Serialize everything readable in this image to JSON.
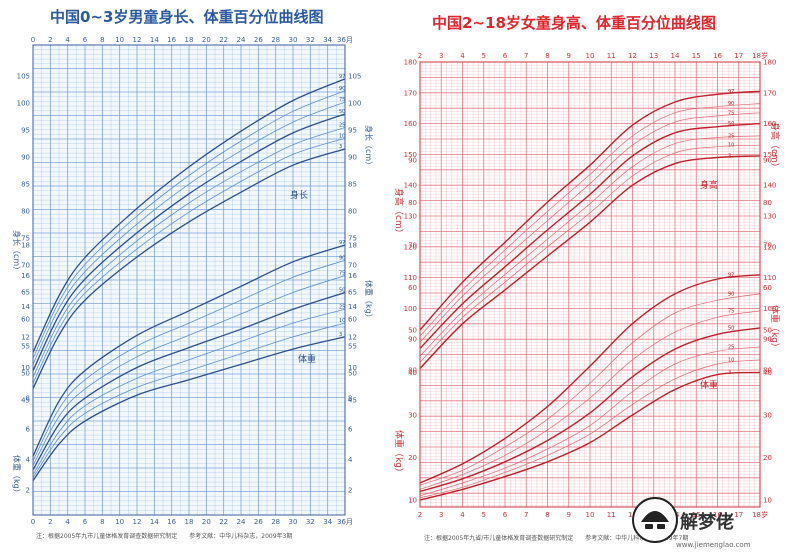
{
  "chart_data": [
    {
      "type": "line",
      "title": "中国0~3岁男童身长、体重百分位曲线图",
      "x_unit": "月",
      "x_ticks": [
        0,
        2,
        4,
        6,
        8,
        10,
        12,
        14,
        16,
        18,
        20,
        22,
        24,
        26,
        28,
        30,
        32,
        34,
        36
      ],
      "x_tick_labels": [
        "0",
        "2",
        "4",
        "6",
        "8",
        "10",
        "12",
        "14",
        "16",
        "18",
        "20",
        "22",
        "24",
        "26",
        "28",
        "30",
        "32",
        "34",
        "36月"
      ],
      "length_axis": {
        "label": "身长（cm）",
        "ylim": [
          45,
          108
        ],
        "ticks": [
          45,
          50,
          55,
          60,
          65,
          70,
          75,
          80,
          85,
          90,
          95,
          100,
          105
        ]
      },
      "weight_axis": {
        "label": "体重（kg）",
        "ylim": [
          2,
          18
        ],
        "ticks": [
          2,
          4,
          6,
          8,
          10,
          12,
          14,
          16,
          18
        ]
      },
      "length_label": "身长",
      "weight_label": "体重",
      "percentiles": [
        "3",
        "10",
        "25",
        "50",
        "75",
        "90",
        "97"
      ],
      "length_series": [
        {
          "name": "3",
          "x": [
            0,
            3,
            6,
            12,
            18,
            24,
            30,
            36
          ],
          "y": [
            47.1,
            57.0,
            63.5,
            71.5,
            78.0,
            83.5,
            88.5,
            91.5
          ]
        },
        {
          "name": "10",
          "x": [
            0,
            3,
            6,
            12,
            18,
            24,
            30,
            36
          ],
          "y": [
            48.1,
            58.2,
            64.8,
            73.0,
            79.8,
            85.5,
            90.5,
            93.5
          ]
        },
        {
          "name": "25",
          "x": [
            0,
            3,
            6,
            12,
            18,
            24,
            30,
            36
          ],
          "y": [
            49.2,
            59.4,
            66.0,
            74.5,
            81.5,
            87.3,
            92.3,
            95.5
          ]
        },
        {
          "name": "50",
          "x": [
            0,
            3,
            6,
            12,
            18,
            24,
            30,
            36
          ],
          "y": [
            50.4,
            60.7,
            67.4,
            76.0,
            83.2,
            89.2,
            94.5,
            98.0
          ]
        },
        {
          "name": "75",
          "x": [
            0,
            3,
            6,
            12,
            18,
            24,
            30,
            36
          ],
          "y": [
            51.6,
            62.0,
            68.8,
            77.6,
            85.0,
            91.2,
            96.5,
            100.2
          ]
        },
        {
          "name": "90",
          "x": [
            0,
            3,
            6,
            12,
            18,
            24,
            30,
            36
          ],
          "y": [
            52.7,
            63.2,
            70.1,
            79.1,
            86.6,
            93.0,
            98.5,
            102.3
          ]
        },
        {
          "name": "97",
          "x": [
            0,
            3,
            6,
            12,
            18,
            24,
            30,
            36
          ],
          "y": [
            53.8,
            64.3,
            71.4,
            80.5,
            88.2,
            94.8,
            100.5,
            104.5
          ]
        }
      ],
      "weight_series": [
        {
          "name": "3",
          "x": [
            0,
            3,
            6,
            12,
            18,
            24,
            30,
            36
          ],
          "y": [
            2.6,
            5.0,
            6.5,
            8.2,
            9.2,
            10.2,
            11.2,
            12.0
          ]
        },
        {
          "name": "10",
          "x": [
            0,
            3,
            6,
            12,
            18,
            24,
            30,
            36
          ],
          "y": [
            2.8,
            5.4,
            7.0,
            8.7,
            9.8,
            10.9,
            12.0,
            12.9
          ]
        },
        {
          "name": "25",
          "x": [
            0,
            3,
            6,
            12,
            18,
            24,
            30,
            36
          ],
          "y": [
            3.0,
            5.8,
            7.5,
            9.3,
            10.5,
            11.7,
            12.9,
            13.8
          ]
        },
        {
          "name": "50",
          "x": [
            0,
            3,
            6,
            12,
            18,
            24,
            30,
            36
          ],
          "y": [
            3.3,
            6.3,
            8.0,
            10.0,
            11.3,
            12.5,
            13.8,
            14.9
          ]
        },
        {
          "name": "75",
          "x": [
            0,
            3,
            6,
            12,
            18,
            24,
            30,
            36
          ],
          "y": [
            3.6,
            6.8,
            8.6,
            10.7,
            12.1,
            13.5,
            14.9,
            16.0
          ]
        },
        {
          "name": "90",
          "x": [
            0,
            3,
            6,
            12,
            18,
            24,
            30,
            36
          ],
          "y": [
            3.9,
            7.3,
            9.2,
            11.4,
            12.9,
            14.4,
            15.9,
            17.0
          ]
        },
        {
          "name": "97",
          "x": [
            0,
            3,
            6,
            12,
            18,
            24,
            30,
            36
          ],
          "y": [
            4.2,
            7.8,
            9.8,
            12.1,
            13.7,
            15.3,
            16.9,
            18.0
          ]
        }
      ],
      "note": "注：根据2005年九市儿童体格发育调查数据研究制定　　参考文献：中华儿科杂志，2009年3期",
      "colors": {
        "grid": "#6f9bd2",
        "curve": "#2c4f8e",
        "bg": "#f2f7fd"
      }
    },
    {
      "type": "line",
      "title": "中国2~18岁女童身高、体重百分位曲线图",
      "x_unit": "岁",
      "x_ticks": [
        2,
        3,
        4,
        5,
        6,
        7,
        8,
        9,
        10,
        11,
        12,
        13,
        14,
        15,
        16,
        17,
        18
      ],
      "x_tick_labels": [
        "2",
        "3",
        "4",
        "5",
        "6",
        "7",
        "8",
        "9",
        "10",
        "11",
        "12",
        "13",
        "14",
        "15",
        "16",
        "17",
        "18岁"
      ],
      "height_axis": {
        "label": "身高（cm）",
        "ylim": [
          80,
          180
        ],
        "ticks": [
          80,
          90,
          100,
          110,
          120,
          130,
          140,
          150,
          160,
          170,
          180
        ]
      },
      "weight_axis": {
        "label": "体重（kg）",
        "ylim": [
          10,
          90
        ],
        "ticks": [
          10,
          20,
          30,
          40,
          50,
          60,
          70,
          80,
          90
        ]
      },
      "height_label": "身高",
      "weight_label": "体重",
      "percentiles": [
        "3",
        "10",
        "25",
        "50",
        "75",
        "90",
        "97"
      ],
      "height_series": [
        {
          "name": "3",
          "x": [
            2,
            4,
            6,
            8,
            10,
            12,
            14,
            16,
            18
          ],
          "y": [
            80.5,
            95.0,
            106.0,
            117.0,
            128.0,
            140.0,
            147.0,
            149.0,
            149.5
          ]
        },
        {
          "name": "10",
          "x": [
            2,
            4,
            6,
            8,
            10,
            12,
            14,
            16,
            18
          ],
          "y": [
            82.5,
            97.0,
            108.5,
            120.0,
            131.0,
            143.0,
            150.5,
            152.5,
            153.0
          ]
        },
        {
          "name": "25",
          "x": [
            2,
            4,
            6,
            8,
            10,
            12,
            14,
            16,
            18
          ],
          "y": [
            84.5,
            99.0,
            111.0,
            122.5,
            134.0,
            146.0,
            153.5,
            155.5,
            156.0
          ]
        },
        {
          "name": "50",
          "x": [
            2,
            4,
            6,
            8,
            10,
            12,
            14,
            16,
            18
          ],
          "y": [
            87.0,
            101.5,
            113.5,
            125.5,
            137.0,
            149.5,
            157.0,
            159.0,
            160.0
          ]
        },
        {
          "name": "75",
          "x": [
            2,
            4,
            6,
            8,
            10,
            12,
            14,
            16,
            18
          ],
          "y": [
            89.0,
            104.0,
            116.5,
            128.5,
            140.5,
            153.0,
            160.5,
            162.5,
            163.5
          ]
        },
        {
          "name": "90",
          "x": [
            2,
            4,
            6,
            8,
            10,
            12,
            14,
            16,
            18
          ],
          "y": [
            91.0,
            106.0,
            119.0,
            131.5,
            143.5,
            156.0,
            163.5,
            165.5,
            166.5
          ]
        },
        {
          "name": "97",
          "x": [
            2,
            4,
            6,
            8,
            10,
            12,
            14,
            16,
            18
          ],
          "y": [
            93.0,
            108.5,
            121.5,
            134.5,
            146.5,
            159.5,
            167.0,
            169.5,
            170.5
          ]
        }
      ],
      "weight_series": [
        {
          "name": "3",
          "x": [
            2,
            4,
            6,
            8,
            10,
            12,
            14,
            16,
            18
          ],
          "y": [
            10.0,
            12.5,
            15.5,
            19.0,
            23.5,
            30.0,
            36.0,
            39.5,
            40.0
          ]
        },
        {
          "name": "10",
          "x": [
            2,
            4,
            6,
            8,
            10,
            12,
            14,
            16,
            18
          ],
          "y": [
            10.5,
            13.0,
            16.5,
            20.5,
            25.5,
            32.5,
            38.5,
            42.0,
            43.0
          ]
        },
        {
          "name": "25",
          "x": [
            2,
            4,
            6,
            8,
            10,
            12,
            14,
            16,
            18
          ],
          "y": [
            11.0,
            14.0,
            17.5,
            22.0,
            27.5,
            35.5,
            42.0,
            45.0,
            46.0
          ]
        },
        {
          "name": "50",
          "x": [
            2,
            4,
            6,
            8,
            10,
            12,
            14,
            16,
            18
          ],
          "y": [
            12.0,
            15.0,
            19.0,
            24.0,
            30.5,
            39.0,
            45.5,
            49.0,
            50.5
          ]
        },
        {
          "name": "75",
          "x": [
            2,
            4,
            6,
            8,
            10,
            12,
            14,
            16,
            18
          ],
          "y": [
            12.5,
            16.0,
            20.5,
            26.5,
            34.0,
            43.0,
            49.5,
            53.0,
            54.5
          ]
        },
        {
          "name": "90",
          "x": [
            2,
            4,
            6,
            8,
            10,
            12,
            14,
            16,
            18
          ],
          "y": [
            13.5,
            17.0,
            22.5,
            29.0,
            37.5,
            47.0,
            54.0,
            57.0,
            58.5
          ]
        },
        {
          "name": "97",
          "x": [
            2,
            4,
            6,
            8,
            10,
            12,
            14,
            16,
            18
          ],
          "y": [
            14.0,
            18.5,
            24.5,
            32.0,
            41.5,
            51.5,
            58.5,
            62.0,
            63.0
          ]
        }
      ],
      "note": "注：根据2005年九省/市儿童体格发育调查数据研究制定　　参考文献：中华儿科杂志，2009年7期",
      "colors": {
        "grid": "#e5707a",
        "curve": "#c0202a",
        "bg": "#ffffff"
      }
    }
  ],
  "watermark": {
    "text": "解梦佬",
    "url": "www.jiemenglao.com"
  }
}
